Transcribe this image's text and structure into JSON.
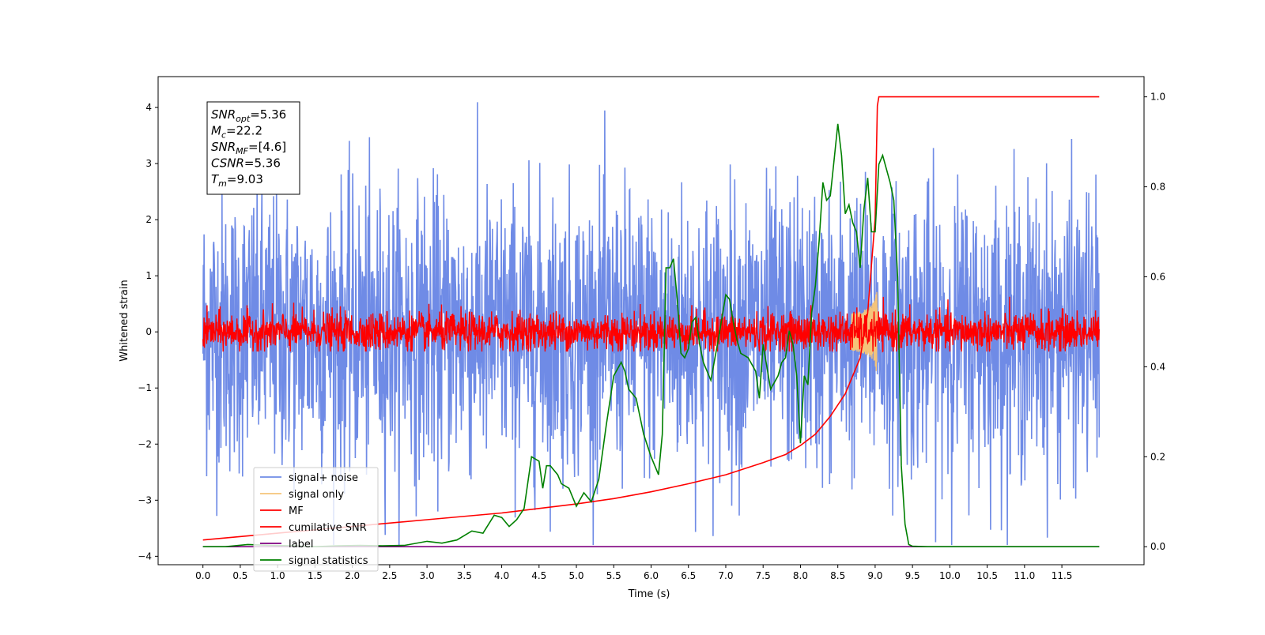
{
  "chart_data": {
    "type": "line",
    "xlabel": "Time (s)",
    "ylabel": "Whitened strain",
    "xlim": [
      -0.6,
      12.6
    ],
    "ylim": [
      -4.15,
      4.55
    ],
    "y2lim": [
      -0.04,
      1.045
    ],
    "x_ticks": [
      "0.0",
      "0.5",
      "1.0",
      "1.5",
      "2.0",
      "2.5",
      "3.0",
      "3.5",
      "4.0",
      "4.5",
      "5.0",
      "5.5",
      "6.0",
      "6.5",
      "7.0",
      "7.5",
      "8.0",
      "8.5",
      "9.0",
      "9.5",
      "10.0",
      "10.5",
      "11.0",
      "11.5"
    ],
    "y_ticks": [
      "4",
      "3",
      "2",
      "1",
      "0",
      "−1",
      "−2",
      "−3",
      "−4"
    ],
    "y2_ticks": [
      "1.0",
      "0.8",
      "0.6",
      "0.4",
      "0.2",
      "0.0"
    ],
    "annotation": [
      {
        "main": "SNR",
        "sub": "opt",
        "value": "=5.36"
      },
      {
        "main": "M",
        "sub": "c",
        "value": "=22.2"
      },
      {
        "main": "SNR",
        "sub": "MF",
        "value": "=[4.6]"
      },
      {
        "main": "CSNR",
        "sub": "",
        "value": "=5.36"
      },
      {
        "main": "T",
        "sub": "m",
        "value": "=9.03"
      }
    ],
    "series": [
      {
        "name": "signal+ noise",
        "color": "#6f8be6",
        "axis": "left",
        "kind": "noise",
        "amplitude": 2.0,
        "range": [
          0,
          12
        ]
      },
      {
        "name": "signal only",
        "color": "#f5c47a",
        "axis": "left",
        "kind": "chirp",
        "merger_time": 9.03,
        "peak": 1.2
      },
      {
        "name": "MF",
        "color": "#ff0000",
        "axis": "left",
        "kind": "noise",
        "amplitude": 0.35,
        "range": [
          0,
          12
        ]
      },
      {
        "name": "cumilative SNR",
        "color": "#ff0000",
        "axis": "right",
        "x": [
          0,
          1,
          2,
          3,
          4,
          5,
          5.5,
          6,
          6.5,
          7,
          7.5,
          7.8,
          8,
          8.2,
          8.4,
          8.6,
          8.8,
          8.9,
          9.0,
          9.03,
          9.05,
          12
        ],
        "y": [
          0.015,
          0.03,
          0.045,
          0.06,
          0.075,
          0.095,
          0.107,
          0.122,
          0.14,
          0.16,
          0.187,
          0.205,
          0.225,
          0.25,
          0.29,
          0.34,
          0.42,
          0.52,
          0.73,
          0.98,
          1.0,
          1.0
        ]
      },
      {
        "name": "label",
        "color": "#7f007f",
        "axis": "right",
        "x": [
          0,
          12
        ],
        "y": [
          0,
          0
        ]
      },
      {
        "name": "signal statistics",
        "color": "#008000",
        "axis": "right",
        "x": [
          0,
          0.3,
          0.6,
          0.9,
          1.2,
          1.5,
          1.8,
          2.1,
          2.4,
          2.7,
          3.0,
          3.2,
          3.4,
          3.6,
          3.75,
          3.9,
          4.0,
          4.1,
          4.2,
          4.3,
          4.4,
          4.5,
          4.55,
          4.6,
          4.65,
          4.75,
          4.8,
          4.9,
          5.0,
          5.1,
          5.2,
          5.3,
          5.4,
          5.5,
          5.6,
          5.65,
          5.7,
          5.8,
          5.9,
          6.0,
          6.05,
          6.1,
          6.15,
          6.2,
          6.25,
          6.3,
          6.35,
          6.4,
          6.45,
          6.5,
          6.55,
          6.6,
          6.65,
          6.7,
          6.8,
          6.9,
          7.0,
          7.05,
          7.1,
          7.15,
          7.2,
          7.3,
          7.4,
          7.45,
          7.5,
          7.6,
          7.7,
          7.75,
          7.8,
          7.85,
          7.9,
          7.95,
          8.0,
          8.05,
          8.1,
          8.15,
          8.2,
          8.25,
          8.3,
          8.35,
          8.4,
          8.45,
          8.5,
          8.55,
          8.6,
          8.65,
          8.7,
          8.75,
          8.8,
          8.85,
          8.9,
          8.95,
          9.0,
          9.05,
          9.1,
          9.15,
          9.2,
          9.25,
          9.3,
          9.35,
          9.4,
          9.45,
          9.5,
          9.7,
          10,
          11,
          12
        ],
        "y": [
          0,
          0,
          0.005,
          0.003,
          0.002,
          0,
          0.002,
          0.003,
          0.002,
          0.003,
          0.012,
          0.008,
          0.015,
          0.035,
          0.03,
          0.07,
          0.065,
          0.045,
          0.06,
          0.085,
          0.2,
          0.19,
          0.13,
          0.18,
          0.18,
          0.16,
          0.14,
          0.13,
          0.09,
          0.12,
          0.1,
          0.15,
          0.27,
          0.38,
          0.41,
          0.39,
          0.35,
          0.33,
          0.25,
          0.2,
          0.18,
          0.16,
          0.25,
          0.62,
          0.62,
          0.64,
          0.55,
          0.43,
          0.42,
          0.44,
          0.5,
          0.51,
          0.45,
          0.41,
          0.37,
          0.46,
          0.56,
          0.55,
          0.5,
          0.46,
          0.43,
          0.42,
          0.39,
          0.33,
          0.45,
          0.35,
          0.38,
          0.41,
          0.42,
          0.48,
          0.45,
          0.38,
          0.23,
          0.38,
          0.36,
          0.52,
          0.58,
          0.68,
          0.81,
          0.77,
          0.78,
          0.86,
          0.94,
          0.87,
          0.74,
          0.76,
          0.72,
          0.7,
          0.62,
          0.75,
          0.82,
          0.7,
          0.7,
          0.85,
          0.87,
          0.84,
          0.81,
          0.77,
          0.6,
          0.18,
          0.05,
          0.005,
          0.001,
          0,
          0,
          0,
          0
        ]
      }
    ],
    "legend_position": "lower-left",
    "grid": false
  }
}
